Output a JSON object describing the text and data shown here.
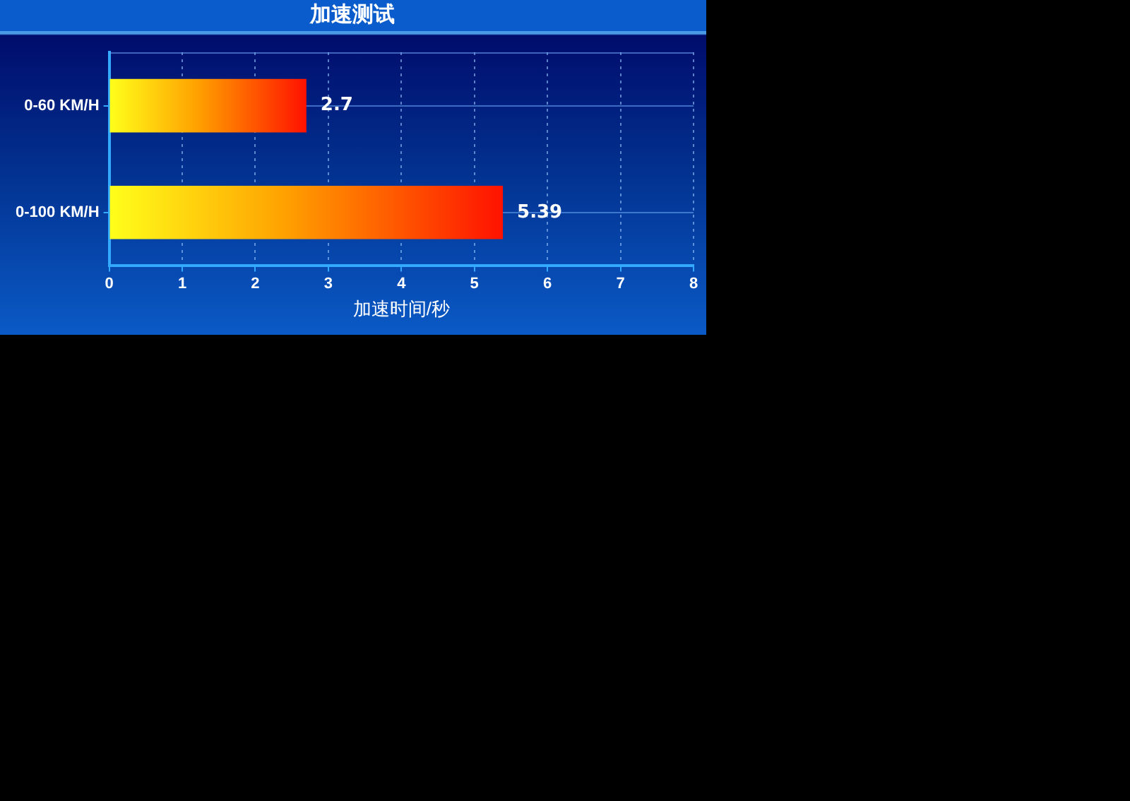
{
  "chart_data": {
    "type": "bar",
    "orientation": "horizontal",
    "title": "加速测试",
    "xlabel": "加速时间/秒",
    "categories": [
      "0-60 KM/H",
      "0-100 KM/H"
    ],
    "values": [
      2.7,
      5.39
    ],
    "color": "#ff1200",
    "xlim": [
      0,
      8
    ],
    "xticks": [
      0,
      1,
      2,
      3,
      4,
      5,
      6,
      7,
      8
    ],
    "grid": true,
    "data_labels": true
  }
}
